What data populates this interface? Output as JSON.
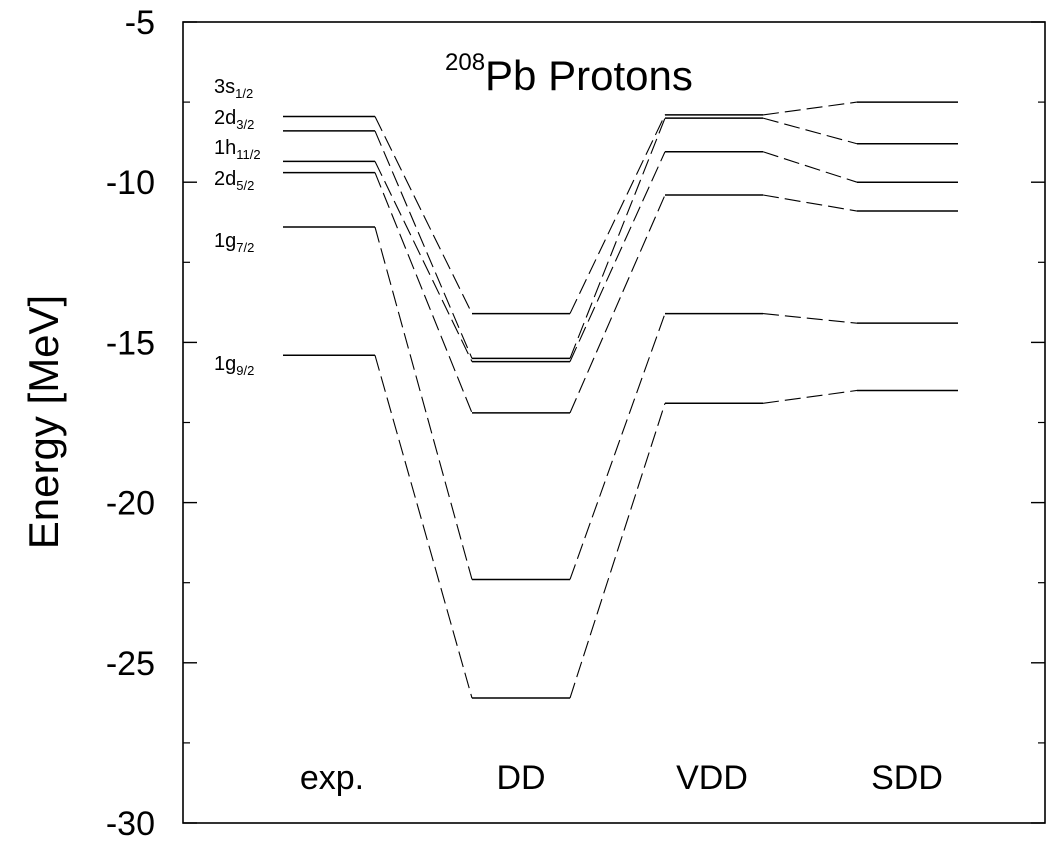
{
  "chart_data": {
    "type": "level-diagram",
    "title_sup": "208",
    "title_main": "Pb  Protons",
    "ylabel": "Energy [MeV]",
    "ylim": [
      -30,
      -5
    ],
    "yticks": [
      -30,
      -25,
      -20,
      -15,
      -10,
      -5
    ],
    "ytick_labels": [
      "-30",
      "-25",
      "-20",
      "-15",
      "-10",
      "-5"
    ],
    "grid": false,
    "columns": [
      "exp.",
      "DD",
      "VDD",
      "SDD"
    ],
    "levels": [
      {
        "main": "3s",
        "sub": "1/2",
        "values": [
          -7.95,
          -14.1,
          -7.9,
          -7.5
        ]
      },
      {
        "main": "2d",
        "sub": "3/2",
        "values": [
          -8.4,
          -15.5,
          -8.0,
          -8.8
        ]
      },
      {
        "main": "1h",
        "sub": "11/2",
        "values": [
          -9.35,
          -15.6,
          -9.05,
          -10.0
        ]
      },
      {
        "main": "2d",
        "sub": "5/2",
        "values": [
          -9.7,
          -17.2,
          -10.4,
          -10.9
        ]
      },
      {
        "main": "1g",
        "sub": "7/2",
        "values": [
          -11.4,
          -22.4,
          -14.1,
          -14.4
        ]
      },
      {
        "main": "1g",
        "sub": "9/2",
        "values": [
          -15.4,
          -26.1,
          -16.9,
          -16.5
        ]
      }
    ]
  }
}
